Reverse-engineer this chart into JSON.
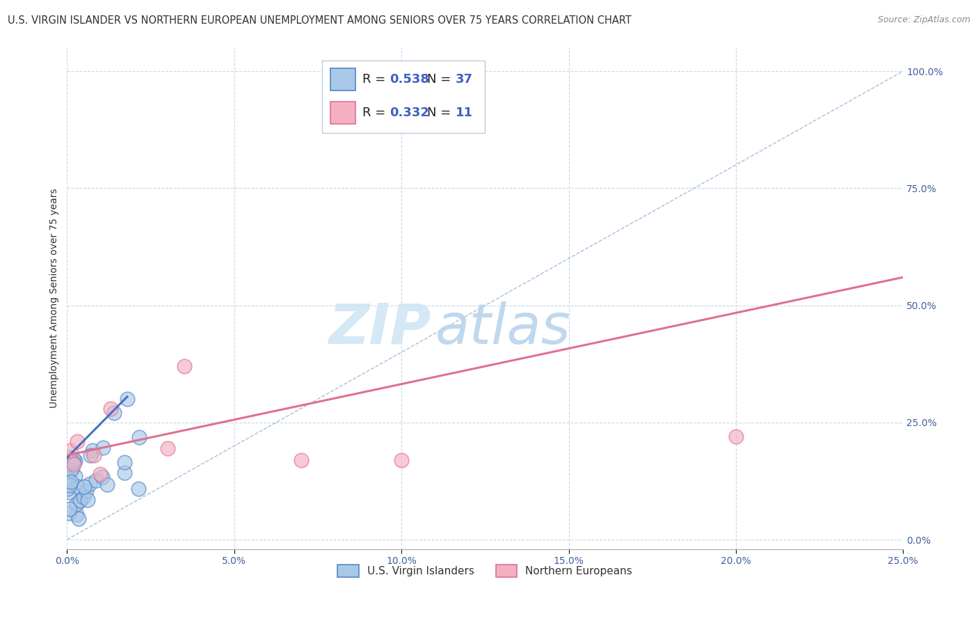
{
  "title": "U.S. VIRGIN ISLANDER VS NORTHERN EUROPEAN UNEMPLOYMENT AMONG SENIORS OVER 75 YEARS CORRELATION CHART",
  "source": "Source: ZipAtlas.com",
  "ylabel": "Unemployment Among Seniors over 75 years",
  "xlim": [
    0.0,
    0.25
  ],
  "ylim": [
    -0.02,
    1.05
  ],
  "xticks": [
    0.0,
    0.05,
    0.1,
    0.15,
    0.2,
    0.25
  ],
  "yticks": [
    0.0,
    0.25,
    0.5,
    0.75,
    1.0
  ],
  "R_blue": 0.538,
  "N_blue": 37,
  "R_pink": 0.332,
  "N_pink": 11,
  "color_blue_fill": "#a8c8e8",
  "color_blue_edge": "#5585c5",
  "color_blue_line": "#4472c4",
  "color_pink_fill": "#f4b0c0",
  "color_pink_edge": "#e07090",
  "color_pink_line": "#e07090",
  "color_diagonal": "#9bb8d8",
  "color_grid": "#c8d8e8",
  "background_color": "#ffffff",
  "watermark_color": "#c8dff0",
  "title_fontsize": 10.5,
  "source_fontsize": 9,
  "ylabel_fontsize": 10,
  "tick_fontsize": 10,
  "legend_fontsize": 11,
  "annot_fontsize": 13
}
